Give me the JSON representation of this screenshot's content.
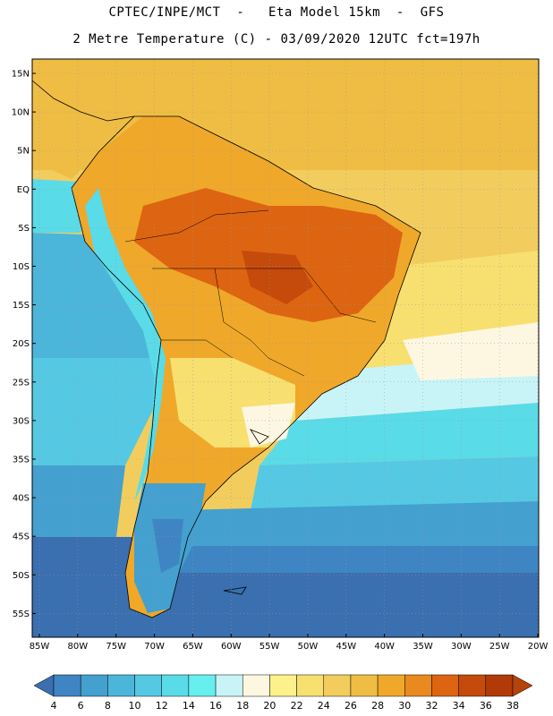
{
  "title_line1": "CPTEC/INPE/MCT  -   Eta Model 15km  -  GFS",
  "title_line2": "2 Metre Temperature (C) - 03/09/2020 12UTC fct=197h",
  "lat_labels": [
    "15N",
    "10N",
    "5N",
    "EQ",
    "5S",
    "10S",
    "15S",
    "20S",
    "25S",
    "30S",
    "35S",
    "40S",
    "45S",
    "50S",
    "55S"
  ],
  "lon_labels": [
    "85W",
    "80W",
    "75W",
    "70W",
    "65W",
    "60W",
    "55W",
    "50W",
    "45W",
    "40W",
    "35W",
    "30W",
    "25W",
    "20W"
  ],
  "colorbar": {
    "values": [
      "4",
      "6",
      "8",
      "10",
      "12",
      "14",
      "16",
      "18",
      "20",
      "22",
      "24",
      "26",
      "28",
      "30",
      "32",
      "34",
      "36",
      "38"
    ],
    "colors": [
      "#3a6fb0",
      "#3f85c3",
      "#44a0cf",
      "#4cb6da",
      "#55c9e3",
      "#5adbe8",
      "#66efee",
      "#c8f4f7",
      "#fdf7e2",
      "#fcf18a",
      "#f7e070",
      "#f2cd5e",
      "#efbd44",
      "#efa82a",
      "#e88a1f",
      "#dd6411",
      "#c44b0c",
      "#b13a08",
      "#c03d0a"
    ]
  },
  "legend_items": {
    "low_arrow_color": "#3a6fb0",
    "high_arrow_color": "#b5430c"
  }
}
